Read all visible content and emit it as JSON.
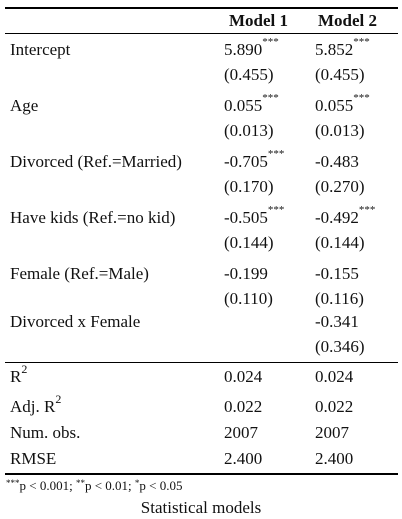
{
  "table": {
    "headers": [
      "Model 1",
      "Model 2"
    ],
    "coef_rows": [
      {
        "label": "Intercept",
        "m1": "5.890",
        "m1_stars": "***",
        "m2": "5.852",
        "m2_stars": "***",
        "m1_se": "(0.455)",
        "m2_se": "(0.455)"
      },
      {
        "label": "Age",
        "m1": "0.055",
        "m1_stars": "***",
        "m2": "0.055",
        "m2_stars": "***",
        "m1_se": "(0.013)",
        "m2_se": "(0.013)"
      },
      {
        "label": "Divorced (Ref.=Married)",
        "m1": "-0.705",
        "m1_stars": "***",
        "m2": "-0.483",
        "m2_stars": "",
        "m1_se": "(0.170)",
        "m2_se": "(0.270)"
      },
      {
        "label": "Have kids (Ref.=no kid)",
        "m1": "-0.505",
        "m1_stars": "***",
        "m2": "-0.492",
        "m2_stars": "***",
        "m1_se": "(0.144)",
        "m2_se": "(0.144)"
      },
      {
        "label": "Female (Ref.=Male)",
        "m1": "-0.199",
        "m1_stars": "",
        "m2": "-0.155",
        "m2_stars": "",
        "m1_se": "(0.110)",
        "m2_se": "(0.116)"
      },
      {
        "label": "Divorced x Female",
        "m1": "",
        "m1_stars": "",
        "m2": "-0.341",
        "m2_stars": "",
        "m1_se": "",
        "m2_se": "(0.346)"
      }
    ],
    "stat_rows": [
      {
        "label": "R",
        "label_sup": "2",
        "m1": "0.024",
        "m2": "0.024"
      },
      {
        "label": "Adj. R",
        "label_sup": "2",
        "m1": "0.022",
        "m2": "0.022"
      },
      {
        "label": "Num. obs.",
        "label_sup": "",
        "m1": "2007",
        "m2": "2007"
      },
      {
        "label": "RMSE",
        "label_sup": "",
        "m1": "2.400",
        "m2": "2.400"
      }
    ]
  },
  "note": {
    "s1": "***",
    "t1": "p < 0.001; ",
    "s2": "**",
    "t2": "p < 0.01; ",
    "s3": "*",
    "t3": "p < 0.05"
  },
  "caption": "Statistical models"
}
